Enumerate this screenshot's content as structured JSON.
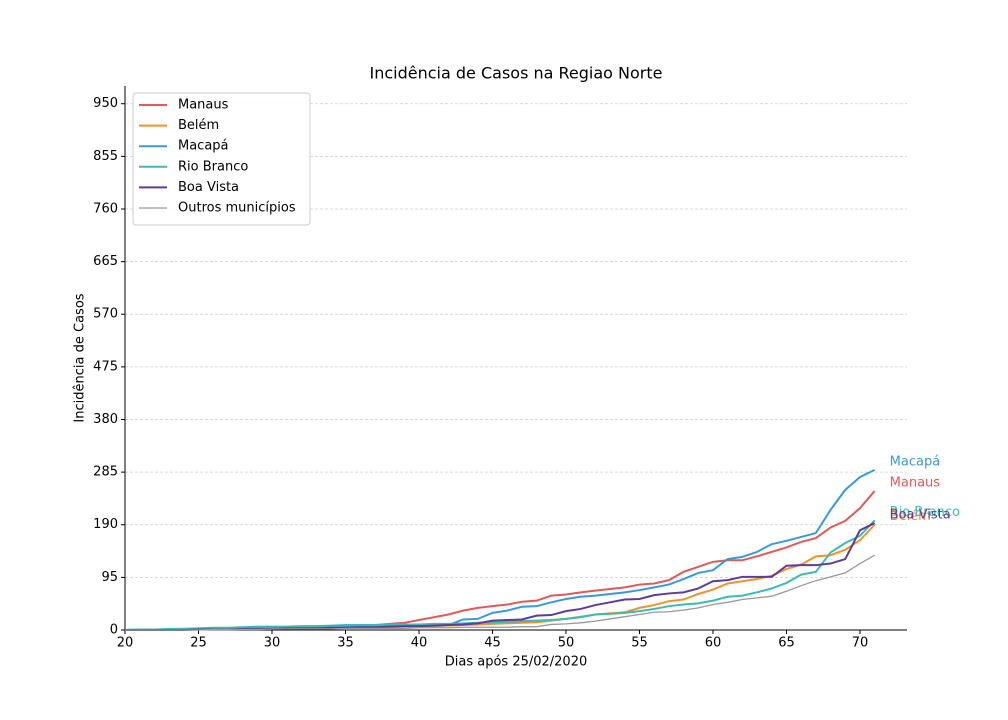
{
  "chart_data": {
    "type": "line",
    "title": "Incidência de Casos na Regiao Norte",
    "xlabel": "Dias após 25/02/2020",
    "ylabel": "Incidência de Casos",
    "x": [
      20,
      21,
      22,
      23,
      24,
      25,
      26,
      27,
      28,
      29,
      30,
      31,
      32,
      33,
      34,
      35,
      36,
      37,
      38,
      39,
      40,
      41,
      42,
      43,
      44,
      45,
      46,
      47,
      48,
      49,
      50,
      51,
      52,
      53,
      54,
      55,
      56,
      57,
      58,
      59,
      60,
      61,
      62,
      63,
      64,
      65,
      66,
      67,
      68,
      69,
      70,
      71
    ],
    "xlim": [
      20,
      73.2
    ],
    "ylim": [
      0,
      982
    ],
    "xticks": [
      20,
      25,
      30,
      35,
      40,
      45,
      50,
      55,
      60,
      65,
      70
    ],
    "yticks": [
      0,
      95,
      190,
      285,
      380,
      475,
      570,
      665,
      760,
      855,
      950
    ],
    "grid": true,
    "legend": "upper left",
    "series": [
      {
        "name": "Manaus",
        "color": "#e05a5a",
        "end_label": true,
        "values": [
          0,
          0,
          1,
          1,
          1,
          2,
          2,
          2,
          3,
          3,
          3,
          4,
          4,
          5,
          5,
          6,
          7,
          9,
          11,
          13,
          18,
          23,
          28,
          35,
          40,
          43,
          46,
          51,
          53,
          62,
          64,
          68,
          71,
          74,
          77,
          82,
          84,
          90,
          105,
          114,
          123,
          126,
          126,
          133,
          141,
          149,
          159,
          166,
          185,
          197,
          220,
          251
        ]
      },
      {
        "name": "Belém",
        "color": "#f0922c",
        "end_label": true,
        "values": [
          0,
          0,
          0,
          0,
          1,
          1,
          1,
          2,
          2,
          2,
          3,
          3,
          3,
          3,
          4,
          4,
          4,
          5,
          5,
          6,
          6,
          7,
          8,
          9,
          10,
          11,
          12,
          13,
          14,
          17,
          20,
          24,
          28,
          30,
          32,
          40,
          45,
          52,
          55,
          65,
          73,
          84,
          88,
          92,
          98,
          110,
          118,
          133,
          135,
          145,
          162,
          190
        ]
      },
      {
        "name": "Macapá",
        "color": "#3a9ad9",
        "end_label": true,
        "values": [
          0,
          1,
          1,
          1,
          2,
          2,
          3,
          3,
          4,
          4,
          5,
          5,
          5,
          6,
          6,
          6,
          7,
          7,
          8,
          8,
          8,
          8,
          9,
          19,
          20,
          31,
          35,
          42,
          43,
          50,
          56,
          60,
          62,
          65,
          68,
          72,
          77,
          82,
          92,
          103,
          108,
          128,
          132,
          141,
          155,
          161,
          168,
          175,
          217,
          253,
          276,
          289
        ]
      },
      {
        "name": "Rio Branco",
        "color": "#3cbab3",
        "end_label": true,
        "values": [
          0,
          1,
          1,
          2,
          2,
          3,
          4,
          4,
          5,
          6,
          6,
          6,
          7,
          7,
          8,
          9,
          9,
          9,
          10,
          10,
          10,
          11,
          11,
          12,
          13,
          14,
          15,
          16,
          17,
          18,
          20,
          23,
          28,
          29,
          31,
          34,
          38,
          43,
          46,
          48,
          53,
          60,
          62,
          68,
          75,
          85,
          100,
          105,
          140,
          157,
          170,
          198
        ]
      },
      {
        "name": "Boa Vista",
        "color": "#5e3c99",
        "end_label": true,
        "values": [
          0,
          0,
          0,
          0,
          0,
          1,
          1,
          1,
          2,
          2,
          2,
          3,
          3,
          3,
          4,
          4,
          5,
          5,
          6,
          7,
          7,
          8,
          9,
          10,
          12,
          17,
          18,
          19,
          26,
          27,
          34,
          38,
          45,
          50,
          55,
          56,
          63,
          66,
          68,
          75,
          88,
          90,
          96,
          96,
          96,
          116,
          117,
          117,
          120,
          128,
          180,
          193
        ]
      },
      {
        "name": "Outros municípios",
        "color": "#999999",
        "end_label": false,
        "values": [
          0,
          0,
          0,
          0,
          0,
          0,
          1,
          1,
          1,
          1,
          2,
          2,
          2,
          2,
          2,
          3,
          3,
          3,
          3,
          3,
          4,
          4,
          4,
          5,
          5,
          5,
          5,
          6,
          6,
          10,
          11,
          13,
          16,
          20,
          24,
          28,
          32,
          33,
          36,
          40,
          46,
          50,
          55,
          58,
          61,
          70,
          80,
          89,
          96,
          103,
          120,
          135
        ]
      }
    ]
  }
}
